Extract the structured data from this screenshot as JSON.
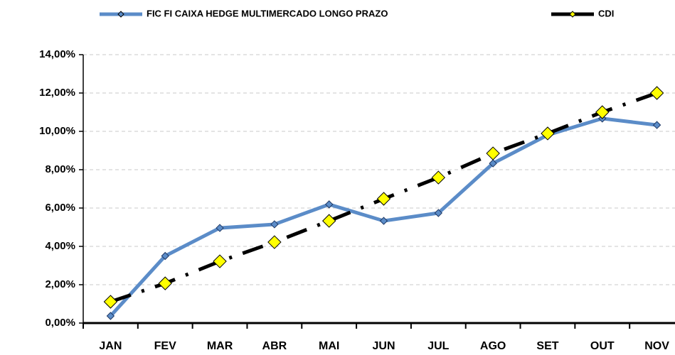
{
  "chart_data": {
    "type": "line",
    "categories": [
      "JAN",
      "FEV",
      "MAR",
      "ABR",
      "MAI",
      "JUN",
      "JUL",
      "AGO",
      "SET",
      "OUT",
      "NOV"
    ],
    "series": [
      {
        "name": "FIC FI CAIXA HEDGE MULTIMERCADO LONGO PRAZO",
        "color": "#5b8cc8",
        "marker_color": "#5b8cc8",
        "dashed": false,
        "values": [
          0.37,
          3.5,
          4.96,
          5.15,
          6.19,
          5.33,
          5.74,
          8.33,
          9.81,
          10.67,
          10.33
        ]
      },
      {
        "name": "CDI",
        "color": "#000000",
        "marker_color": "#ffff00",
        "dashed": true,
        "values": [
          1.11,
          2.07,
          3.22,
          4.22,
          5.33,
          6.48,
          7.59,
          8.85,
          9.89,
          11.0,
          12.0
        ]
      }
    ],
    "ylim": [
      0,
      14
    ],
    "yticks": [
      {
        "value": 0,
        "label": "0,00%"
      },
      {
        "value": 2,
        "label": "2,00%"
      },
      {
        "value": 4,
        "label": "4,00%"
      },
      {
        "value": 6,
        "label": "6,00%"
      },
      {
        "value": 8,
        "label": "8,00%"
      },
      {
        "value": 10,
        "label": "10,00%"
      },
      {
        "value": 12,
        "label": "12,00%"
      },
      {
        "value": 14,
        "label": "14,00%"
      }
    ],
    "grid": true
  }
}
